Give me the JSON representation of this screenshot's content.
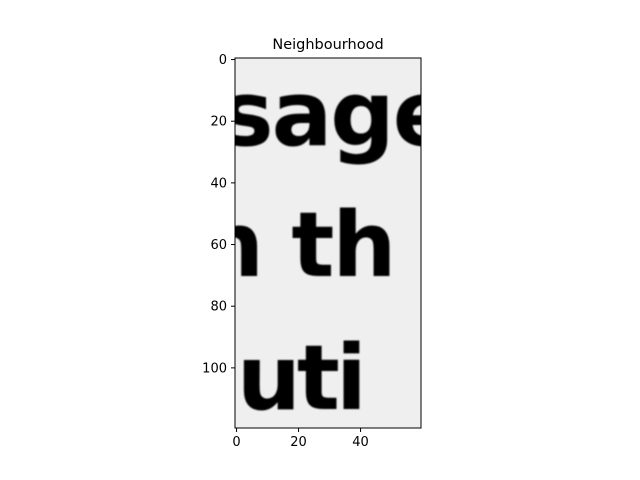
{
  "chart_data": {
    "type": "heatmap",
    "title": "Neighbourhood",
    "xlabel": "",
    "ylabel": "",
    "colormap": "gray",
    "xlim": [
      -0.5,
      59.5
    ],
    "ylim": [
      119.5,
      -0.5
    ],
    "x_ticks": [
      0,
      20,
      40
    ],
    "y_ticks": [
      0,
      20,
      40,
      60,
      80,
      100
    ],
    "grid": false,
    "image_content": {
      "description": "grayscale crop of printed serif text",
      "text_lines": [
        "sage",
        "n th",
        "luti"
      ]
    }
  },
  "colors": {
    "background": "#efefef",
    "ink": "#1c1c1c",
    "axis": "#000000"
  }
}
